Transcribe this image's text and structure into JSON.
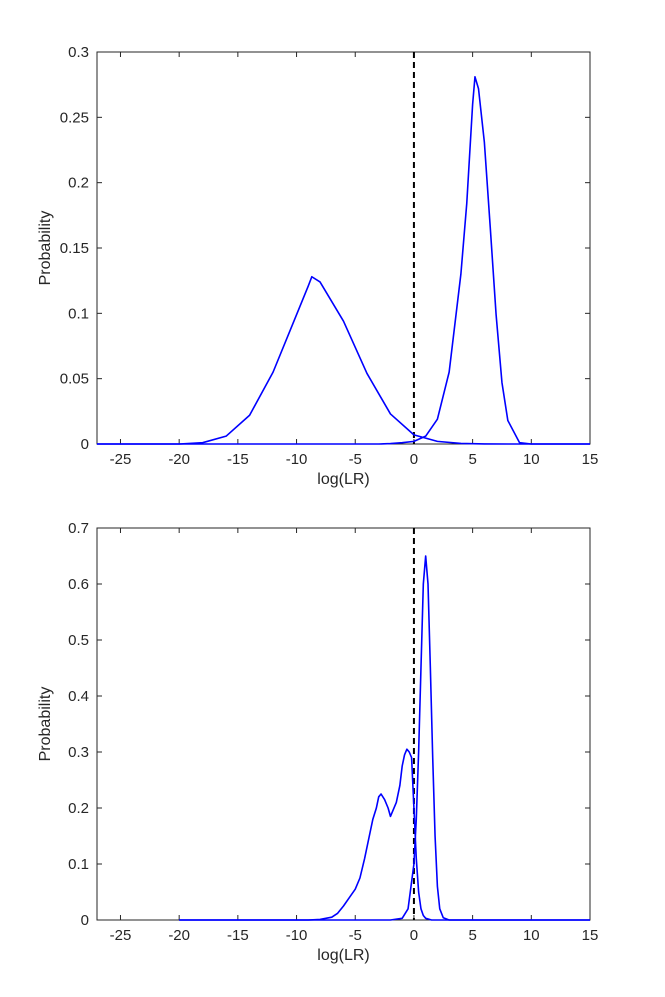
{
  "chart_data": [
    {
      "type": "line",
      "title": "",
      "xlabel": "log(LR)",
      "ylabel": "Probability",
      "xlim": [
        -27,
        15
      ],
      "ylim": [
        0,
        0.3
      ],
      "xticks": [
        -25,
        -20,
        -15,
        -10,
        -5,
        0,
        5,
        10,
        15
      ],
      "xtick_labels": [
        "-25",
        "-20",
        "-15",
        "-10",
        "-5",
        "0",
        "5",
        "10",
        "15"
      ],
      "yticks": [
        0,
        0.05,
        0.1,
        0.15,
        0.2,
        0.25,
        0.3
      ],
      "ytick_labels": [
        "0",
        "0.05",
        "0.1",
        "0.15",
        "0.2",
        "0.25",
        "0.3"
      ],
      "grid": false,
      "legend": "none",
      "line_color": "#0000ff",
      "reference_line": {
        "x": 0,
        "style": "dashed",
        "color": "#000000"
      },
      "series": [
        {
          "x": [
            -27,
            -20,
            -18,
            -16,
            -14,
            -12,
            -10,
            -9,
            -8.7,
            -8,
            -6,
            -4,
            -2,
            0,
            2,
            4,
            6,
            8,
            10,
            15
          ],
          "y": [
            0,
            0,
            0.001,
            0.006,
            0.022,
            0.055,
            0.099,
            0.121,
            0.128,
            0.124,
            0.094,
            0.054,
            0.023,
            0.007,
            0.002,
            0.0004,
            5e-05,
            0,
            0,
            0
          ]
        },
        {
          "x": [
            -27,
            -3,
            -2,
            -1,
            0,
            1,
            2,
            3,
            4,
            4.5,
            5,
            5.2,
            5.5,
            6,
            6.5,
            7,
            7.5,
            8,
            9,
            10,
            15
          ],
          "y": [
            0,
            0,
            0.0003,
            0.001,
            0.002,
            0.006,
            0.019,
            0.055,
            0.13,
            0.184,
            0.26,
            0.281,
            0.272,
            0.231,
            0.166,
            0.099,
            0.047,
            0.018,
            0.001,
            0,
            0
          ]
        }
      ]
    },
    {
      "type": "line",
      "title": "",
      "xlabel": "log(LR)",
      "ylabel": "Probability",
      "xlim": [
        -27,
        15
      ],
      "ylim": [
        0,
        0.7
      ],
      "xticks": [
        -25,
        -20,
        -15,
        -10,
        -5,
        0,
        5,
        10,
        15
      ],
      "xtick_labels": [
        "-25",
        "-20",
        "-15",
        "-10",
        "-5",
        "0",
        "5",
        "10",
        "15"
      ],
      "yticks": [
        0,
        0.1,
        0.2,
        0.3,
        0.4,
        0.5,
        0.6,
        0.7
      ],
      "ytick_labels": [
        "0",
        "0.1",
        "0.2",
        "0.3",
        "0.4",
        "0.5",
        "0.6",
        "0.7"
      ],
      "grid": false,
      "legend": "none",
      "line_color": "#0000ff",
      "reference_line": {
        "x": 0,
        "style": "dashed",
        "color": "#000000"
      },
      "series": [
        {
          "x": [
            -20,
            -9,
            -8,
            -7,
            -6.5,
            -6,
            -5.5,
            -5,
            -4.6,
            -4.2,
            -3.8,
            -3.5,
            -3.2,
            -3,
            -2.8,
            -2.5,
            -2.2,
            -2,
            -1.8,
            -1.5,
            -1.2,
            -1,
            -0.8,
            -0.6,
            -0.4,
            -0.2,
            0,
            0.2,
            0.4,
            0.6,
            0.8,
            1,
            1.5,
            2,
            3,
            15
          ],
          "y": [
            0,
            0,
            0.001,
            0.005,
            0.012,
            0.025,
            0.04,
            0.055,
            0.075,
            0.11,
            0.15,
            0.18,
            0.2,
            0.22,
            0.225,
            0.215,
            0.2,
            0.185,
            0.195,
            0.21,
            0.24,
            0.275,
            0.295,
            0.305,
            0.3,
            0.29,
            0.2,
            0.11,
            0.05,
            0.02,
            0.008,
            0.003,
            0,
            0,
            0,
            0
          ]
        },
        {
          "x": [
            -20,
            -2,
            -1,
            -0.5,
            0,
            0.2,
            0.4,
            0.6,
            0.8,
            1,
            1.2,
            1.4,
            1.6,
            1.8,
            2,
            2.2,
            2.5,
            3,
            15
          ],
          "y": [
            0,
            0,
            0.003,
            0.02,
            0.1,
            0.18,
            0.3,
            0.45,
            0.6,
            0.65,
            0.6,
            0.45,
            0.29,
            0.15,
            0.06,
            0.02,
            0.004,
            0,
            0
          ]
        }
      ]
    }
  ]
}
